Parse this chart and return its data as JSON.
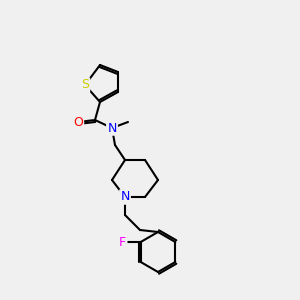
{
  "background_color": "#f0f0f0",
  "bond_color": "#000000",
  "atom_colors": {
    "S": "#cccc00",
    "O": "#ff0000",
    "N_amide": "#0000ff",
    "N_piperidine": "#0000ff",
    "F": "#ff00ff",
    "C": "#000000"
  },
  "line_width": 1.5,
  "font_size": 9
}
